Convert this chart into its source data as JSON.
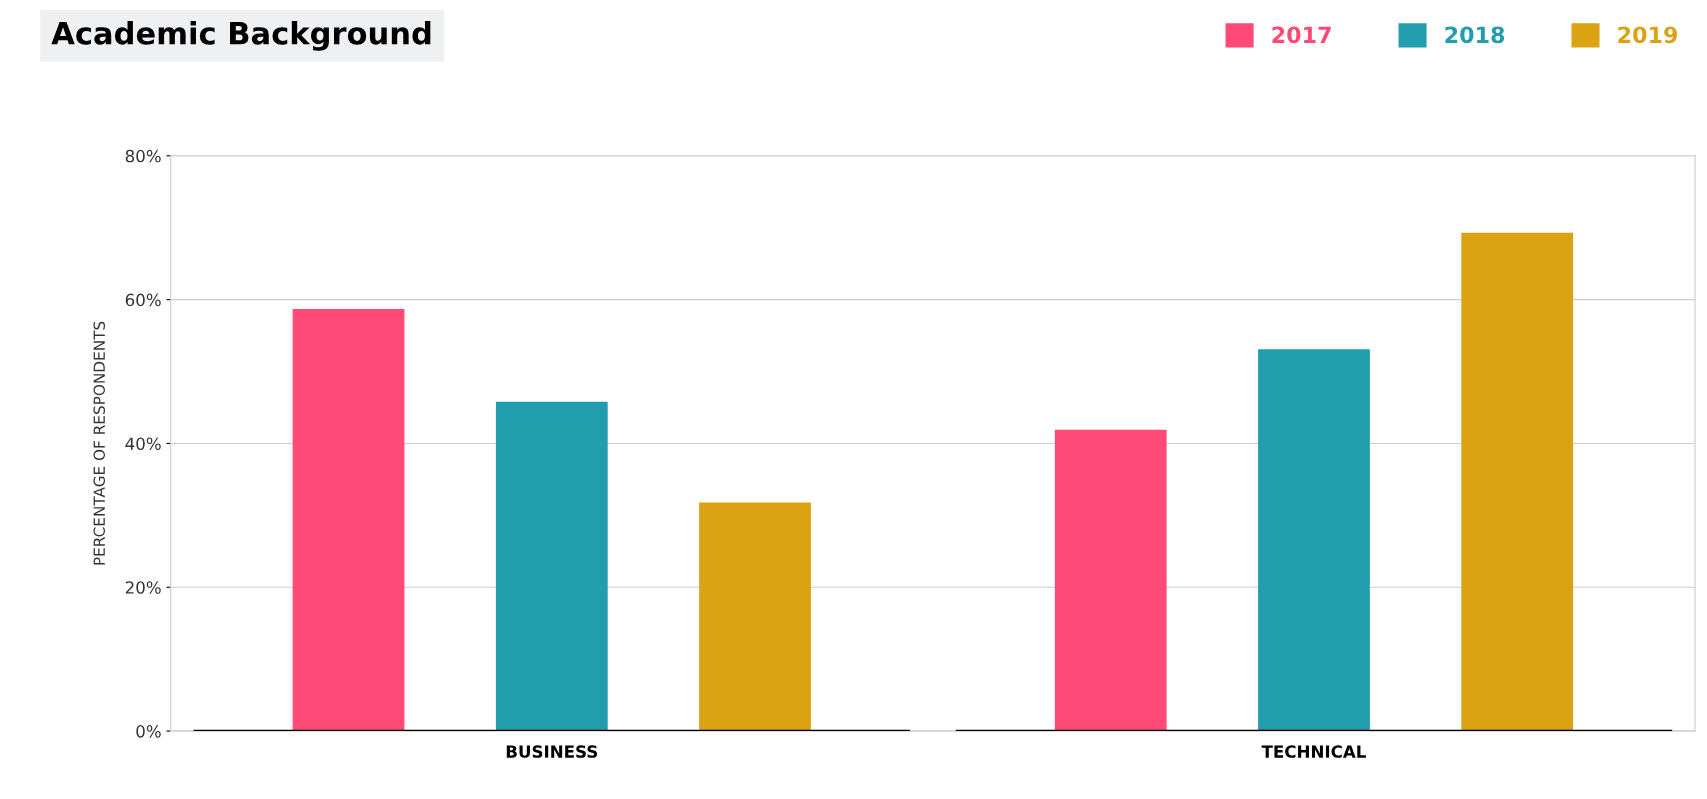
{
  "chart_data": {
    "type": "bar",
    "title": "Academic Background",
    "ylabel": "PERCENTAGE OF RESPONDENTS",
    "categories": [
      "BUSINESS",
      "TECHNICAL"
    ],
    "series": [
      {
        "name": "2017",
        "color": "#ff4a77",
        "values": [
          58.7,
          41.9
        ]
      },
      {
        "name": "2018",
        "color": "#229dad",
        "values": [
          45.8,
          53.1
        ]
      },
      {
        "name": "2019",
        "color": "#dba313",
        "values": [
          31.8,
          69.3
        ]
      }
    ],
    "ylim": [
      0,
      80
    ],
    "yticks": [
      {
        "value": 0,
        "label": "0%"
      },
      {
        "value": 20,
        "label": "20%"
      },
      {
        "value": 40,
        "label": "40%"
      },
      {
        "value": 60,
        "label": "60%"
      },
      {
        "value": 80,
        "label": "80%"
      }
    ],
    "grid": "y",
    "legend": "top right"
  }
}
